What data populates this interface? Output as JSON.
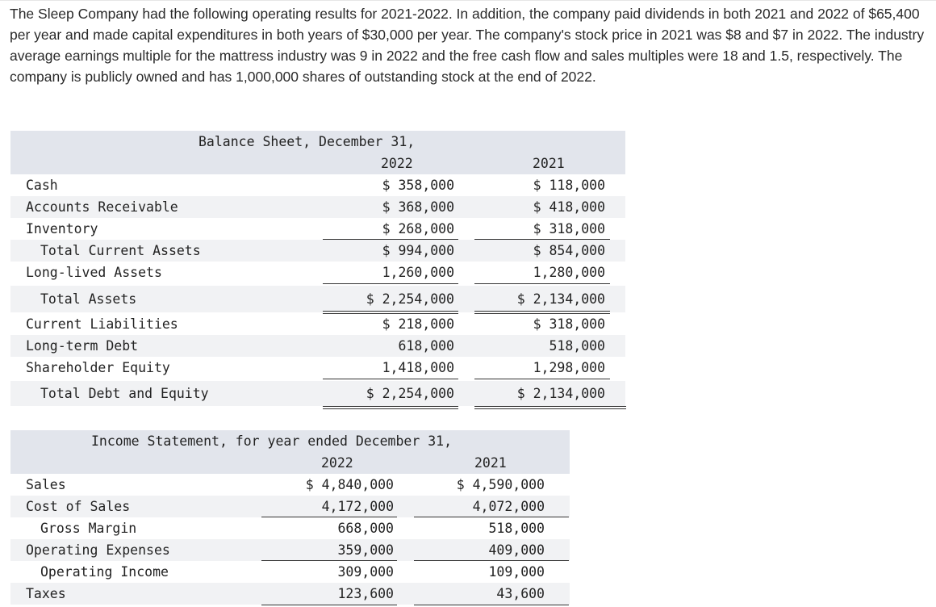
{
  "intro": "The Sleep Company had the following operating results for 2021-2022. In addition, the company paid dividends in both 2021 and 2022 of $65,400 per year and made capital expenditures in both years of $30,000 per year. The company's stock price in 2021 was $8 and $7 in 2022. The industry average earnings multiple for the mattress industry was 9 in 2022 and the free cash flow and sales multiples were 18 and 1.5, respectively. The company is publicly owned and has 1,000,000 shares of outstanding stock at the end of 2022.",
  "balance_sheet": {
    "title": "Balance Sheet, December 31,",
    "col_2022": "2022",
    "col_2021": "2021",
    "rows": [
      {
        "label": "Cash",
        "v2022": "$ 358,000",
        "v2021": "$ 118,000"
      },
      {
        "label": "Accounts Receivable",
        "v2022": "$ 368,000",
        "v2021": "$ 418,000"
      },
      {
        "label": "Inventory",
        "v2022": "$ 268,000",
        "v2021": "$ 318,000"
      },
      {
        "label": "Total Current Assets",
        "v2022": "$ 994,000",
        "v2021": "$ 854,000"
      },
      {
        "label": "Long-lived Assets",
        "v2022": "1,260,000",
        "v2021": "1,280,000"
      },
      {
        "label": "Total Assets",
        "v2022": "$ 2,254,000",
        "v2021": "$ 2,134,000"
      },
      {
        "label": "Current Liabilities",
        "v2022": "$ 218,000",
        "v2021": "$ 318,000"
      },
      {
        "label": "Long-term Debt",
        "v2022": "618,000",
        "v2021": "518,000"
      },
      {
        "label": "Shareholder Equity",
        "v2022": "1,418,000",
        "v2021": "1,298,000"
      },
      {
        "label": "Total Debt and Equity",
        "v2022": "$ 2,254,000",
        "v2021": "$ 2,134,000"
      }
    ]
  },
  "income_statement": {
    "title": "Income Statement, for year ended December 31,",
    "col_2022": "2022",
    "col_2021": "2021",
    "rows": [
      {
        "label": "Sales",
        "v2022": "$ 4,840,000",
        "v2021": "$ 4,590,000"
      },
      {
        "label": "Cost of Sales",
        "v2022": "4,172,000",
        "v2021": "4,072,000"
      },
      {
        "label": "Gross Margin",
        "v2022": "668,000",
        "v2021": "518,000"
      },
      {
        "label": "Operating Expenses",
        "v2022": "359,000",
        "v2021": "409,000"
      },
      {
        "label": "Operating Income",
        "v2022": "309,000",
        "v2021": "109,000"
      },
      {
        "label": "Taxes",
        "v2022": "123,600",
        "v2021": "43,600"
      }
    ]
  }
}
